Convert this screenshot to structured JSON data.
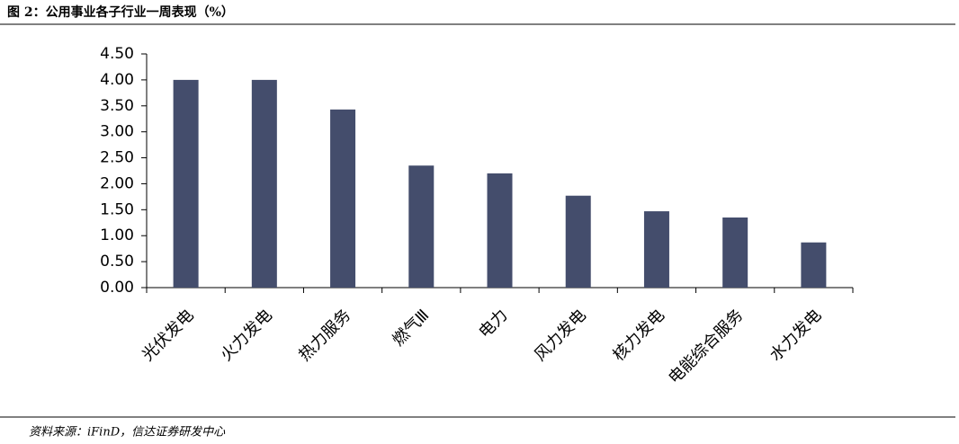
{
  "chart_data": {
    "type": "bar",
    "title": "图 2：公用事业各子行业一周表现（%）",
    "source": "资料来源：iFinD，信达证券研发中心",
    "categories": [
      "光伏发电",
      "火力发电",
      "热力服务",
      "燃气Ⅲ",
      "电力",
      "风力发电",
      "核力发电",
      "电能综合服务",
      "水力发电"
    ],
    "values": [
      4.0,
      4.0,
      3.43,
      2.35,
      2.2,
      1.77,
      1.47,
      1.35,
      0.87
    ],
    "color": "#444d6c",
    "ylim": [
      0,
      4.5
    ],
    "yticks": [
      {
        "value": 0,
        "label": "0.00"
      },
      {
        "value": 0.5,
        "label": "0.50"
      },
      {
        "value": 1,
        "label": "1.00"
      },
      {
        "value": 1.5,
        "label": "1.50"
      },
      {
        "value": 2,
        "label": "2.00"
      },
      {
        "value": 2.5,
        "label": "2.50"
      },
      {
        "value": 3,
        "label": "3.00"
      },
      {
        "value": 3.5,
        "label": "3.50"
      },
      {
        "value": 4,
        "label": "4.00"
      },
      {
        "value": 4.5,
        "label": "4.50"
      }
    ],
    "grid": false
  }
}
